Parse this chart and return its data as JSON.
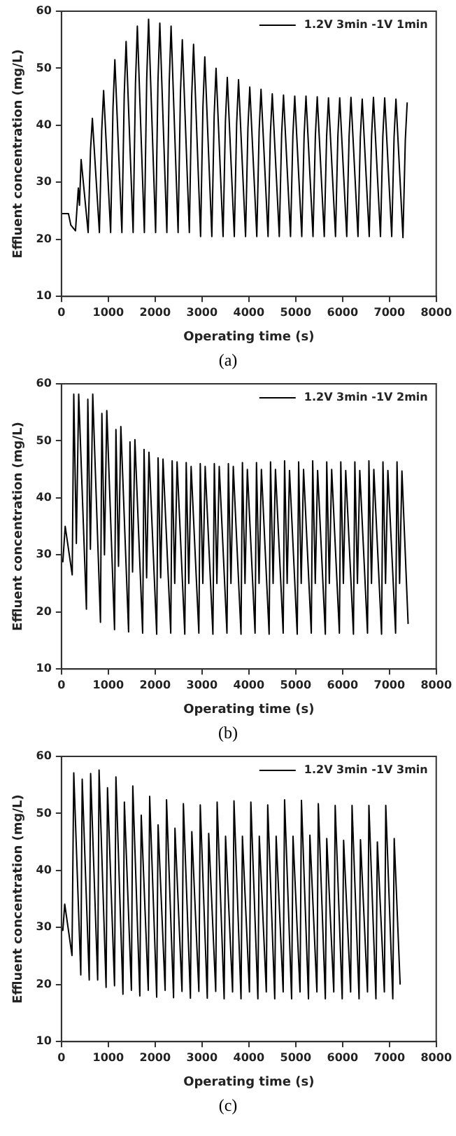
{
  "chart_data": [
    {
      "type": "line",
      "xlabel": "Operating time (s)",
      "ylabel": "Effluent concentration (mg/L)",
      "xlim": [
        0,
        8000
      ],
      "xticks": [
        0,
        1000,
        2000,
        3000,
        4000,
        5000,
        6000,
        7000,
        8000
      ],
      "ylim": [
        10,
        60
      ],
      "yticks": [
        10,
        20,
        30,
        40,
        50,
        60
      ],
      "grid": false,
      "legend": "top right",
      "marker": "none",
      "line_style": "solid",
      "annotations": [
        "(a)"
      ],
      "x": [
        0,
        150,
        200,
        300,
        360,
        385,
        420,
        570,
        620,
        660,
        810,
        860,
        900,
        1050,
        1100,
        1140,
        1290,
        1340,
        1380,
        1530,
        1580,
        1620,
        1770,
        1820,
        1860,
        2010,
        2060,
        2100,
        2250,
        2300,
        2340,
        2490,
        2540,
        2580,
        2730,
        2780,
        2820,
        2970,
        3020,
        3060,
        3210,
        3260,
        3300,
        3450,
        3500,
        3540,
        3690,
        3740,
        3780,
        3930,
        3980,
        4020,
        4170,
        4220,
        4260,
        4410,
        4460,
        4500,
        4650,
        4700,
        4740,
        4890,
        4940,
        4980,
        5130,
        5180,
        5220,
        5370,
        5420,
        5460,
        5610,
        5660,
        5700,
        5850,
        5900,
        5940,
        6090,
        6140,
        6180,
        6330,
        6380,
        6420,
        6570,
        6620,
        6660,
        6810,
        6860,
        6900,
        7050,
        7100,
        7140,
        7290,
        7340,
        7380
      ],
      "series": [
        {
          "name": "1.2V 3min -1V 1min",
          "color": "#000000",
          "values": [
            24.5,
            24.5,
            22.5,
            21.5,
            29,
            26,
            34,
            21.2,
            35.6,
            41.2,
            21.2,
            39.1,
            46.1,
            21.2,
            43.0,
            51.5,
            21.2,
            45.3,
            54.7,
            21.2,
            47.3,
            57.4,
            21.2,
            48.1,
            58.6,
            21.2,
            47.6,
            57.9,
            21.2,
            47.3,
            57.4,
            21.2,
            45.5,
            55,
            21.2,
            45,
            54.2,
            20.5,
            43.2,
            52,
            20.5,
            41.7,
            50,
            20.5,
            40.6,
            48.4,
            20.5,
            40.3,
            48,
            20.5,
            39.4,
            46.7,
            20.5,
            39.1,
            46.3,
            20.5,
            38.5,
            45.5,
            20.5,
            38.4,
            45.3,
            20.5,
            38.2,
            45.1,
            20.5,
            38.2,
            45.1,
            20.5,
            38.1,
            45,
            20.5,
            38,
            44.8,
            20.5,
            38,
            44.8,
            20.5,
            38.1,
            44.9,
            20.5,
            37.9,
            44.6,
            20.5,
            38.1,
            44.9,
            20.5,
            38,
            44.8,
            20.5,
            37.9,
            44.6,
            20.3,
            37.4,
            44
          ]
        }
      ]
    },
    {
      "type": "line",
      "xlabel": "Operating time (s)",
      "ylabel": "Effluent concentration (mg/L)",
      "xlim": [
        0,
        8000
      ],
      "xticks": [
        0,
        1000,
        2000,
        3000,
        4000,
        5000,
        6000,
        7000,
        8000
      ],
      "ylim": [
        10,
        60
      ],
      "yticks": [
        10,
        20,
        30,
        40,
        50,
        60
      ],
      "grid": false,
      "legend": "top right",
      "marker": "none",
      "line_style": "solid",
      "annotations": [
        "(b)"
      ],
      "x": [
        0,
        30,
        80,
        230,
        263,
        318,
        368,
        533,
        563,
        618,
        668,
        833,
        863,
        918,
        968,
        1133,
        1163,
        1218,
        1268,
        1433,
        1463,
        1518,
        1568,
        1733,
        1763,
        1818,
        1868,
        2033,
        2063,
        2118,
        2168,
        2333,
        2363,
        2418,
        2468,
        2633,
        2663,
        2718,
        2768,
        2933,
        2963,
        3018,
        3068,
        3233,
        3263,
        3318,
        3368,
        3533,
        3563,
        3618,
        3668,
        3833,
        3863,
        3918,
        3968,
        4133,
        4163,
        4218,
        4268,
        4433,
        4463,
        4518,
        4568,
        4733,
        4763,
        4818,
        4868,
        5033,
        5063,
        5118,
        5168,
        5333,
        5363,
        5418,
        5468,
        5633,
        5663,
        5718,
        5768,
        5933,
        5963,
        6018,
        6068,
        6233,
        6263,
        6318,
        6368,
        6533,
        6563,
        6618,
        6668,
        6833,
        6863,
        6918,
        6968,
        7133,
        7163,
        7218,
        7268,
        7400
      ],
      "series": [
        {
          "name": "1.2V 3min -1V 2min",
          "color": "#000000",
          "values": [
            29,
            28.8,
            35,
            26.5,
            58.2,
            32,
            58.2,
            20.5,
            57.3,
            31,
            58.2,
            18.2,
            54.8,
            30,
            55.3,
            16.9,
            52,
            28,
            52.5,
            16.5,
            49.8,
            27,
            50.2,
            16.3,
            48.5,
            26,
            48,
            16.1,
            47,
            26,
            46.8,
            16.3,
            46.5,
            25,
            46.3,
            16.1,
            46.2,
            25,
            45.5,
            16.3,
            46,
            25,
            45.5,
            16.1,
            46,
            25,
            45.5,
            16.3,
            46,
            25,
            45.5,
            16.1,
            46.2,
            25,
            45,
            16.3,
            46.2,
            25,
            45,
            16.1,
            46.3,
            25,
            45,
            16.3,
            46.5,
            25,
            44.8,
            16.1,
            46.3,
            25,
            45,
            16.3,
            46.5,
            25,
            44.8,
            16.1,
            46.3,
            25,
            45,
            16.3,
            46.3,
            25,
            44.8,
            16.1,
            46.3,
            25,
            44.8,
            16.3,
            46.5,
            25,
            45,
            16.1,
            46.3,
            25,
            44.8,
            16.3,
            46.3,
            25,
            44.7,
            17.9
          ]
        }
      ]
    },
    {
      "type": "line",
      "xlabel": "Operating time (s)",
      "ylabel": "Effluent concentration (mg/L)",
      "xlim": [
        0,
        8000
      ],
      "xticks": [
        0,
        1000,
        2000,
        3000,
        4000,
        5000,
        6000,
        7000,
        8000
      ],
      "ylim": [
        10,
        60
      ],
      "yticks": [
        10,
        20,
        30,
        40,
        50,
        60
      ],
      "grid": false,
      "legend": "top right",
      "marker": "none",
      "line_style": "solid",
      "annotations": [
        "(c)"
      ],
      "x": [
        0,
        30,
        70,
        225,
        263,
        413,
        443,
        593,
        623,
        773,
        803,
        953,
        983,
        1133,
        1163,
        1313,
        1343,
        1493,
        1523,
        1673,
        1703,
        1853,
        1883,
        2033,
        2063,
        2213,
        2243,
        2393,
        2423,
        2573,
        2603,
        2753,
        2783,
        2933,
        2963,
        3113,
        3143,
        3293,
        3323,
        3473,
        3503,
        3653,
        3683,
        3833,
        3863,
        4013,
        4043,
        4193,
        4223,
        4373,
        4403,
        4553,
        4583,
        4733,
        4763,
        4913,
        4943,
        5093,
        5123,
        5273,
        5303,
        5453,
        5483,
        5633,
        5663,
        5813,
        5843,
        5993,
        6023,
        6173,
        6203,
        6353,
        6383,
        6533,
        6563,
        6713,
        6743,
        6893,
        6923,
        7073,
        7103,
        7230
      ],
      "series": [
        {
          "name": "1.2V 3min -1V 3min",
          "color": "#000000",
          "values": [
            29.7,
            29.5,
            34.1,
            25.1,
            57.1,
            21.7,
            56,
            20.8,
            57,
            20.8,
            57.6,
            19.5,
            54.5,
            19.8,
            56.4,
            18.3,
            52,
            19,
            54.8,
            18,
            49.7,
            19,
            53,
            17.8,
            48,
            19,
            52.4,
            17.7,
            47.4,
            18.8,
            51.7,
            17.6,
            46.8,
            18.8,
            51.5,
            17.6,
            46.5,
            18.8,
            52,
            17.5,
            46,
            18.7,
            52.2,
            17.5,
            46,
            18.7,
            52,
            17.5,
            46,
            18.7,
            51.5,
            17.5,
            46,
            18.7,
            52.4,
            17.5,
            46,
            18.7,
            52.3,
            17.5,
            46.2,
            18.7,
            51.7,
            17.5,
            45.6,
            18.7,
            51.4,
            17.5,
            45.3,
            18.7,
            51.4,
            17.5,
            45.4,
            18.7,
            51.4,
            17.5,
            45,
            18.7,
            51.4,
            17.5,
            45.6,
            20
          ]
        }
      ]
    }
  ]
}
